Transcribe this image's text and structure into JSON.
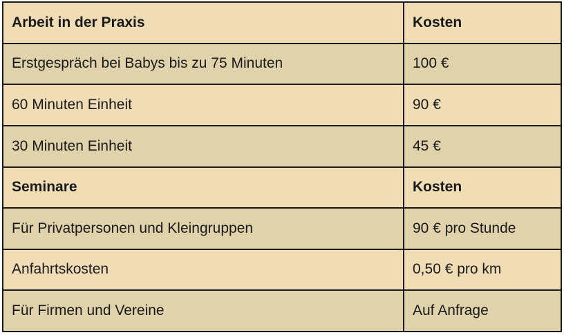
{
  "table": {
    "columns": [
      {
        "label": "Arbeit in der Praxis"
      },
      {
        "label": "Kosten"
      }
    ],
    "rows": [
      {
        "label": "Arbeit in der Praxis",
        "value": "Kosten",
        "header": true
      },
      {
        "label": "Erstgespräch bei Babys bis zu 75 Minuten",
        "value": "100 €",
        "header": false
      },
      {
        "label": "60 Minuten Einheit",
        "value": "90 €",
        "header": false
      },
      {
        "label": "30 Minuten Einheit",
        "value": "45 €",
        "header": false
      },
      {
        "label": "Seminare",
        "value": "Kosten",
        "header": true
      },
      {
        "label": "Für Privatpersonen und Kleingruppen",
        "value": "90 € pro Stunde",
        "header": false
      },
      {
        "label": "Anfahrtskosten",
        "value": "0,50 € pro km",
        "header": false
      },
      {
        "label": "Für Firmen und Vereine",
        "value": "Auf Anfrage",
        "header": false
      }
    ],
    "colors": {
      "row_light": "#f0ddb5",
      "row_dark": "#e0d2ab",
      "border": "#1a1a1a",
      "text": "#1a1a1a",
      "page_background": "#ffffff"
    }
  }
}
